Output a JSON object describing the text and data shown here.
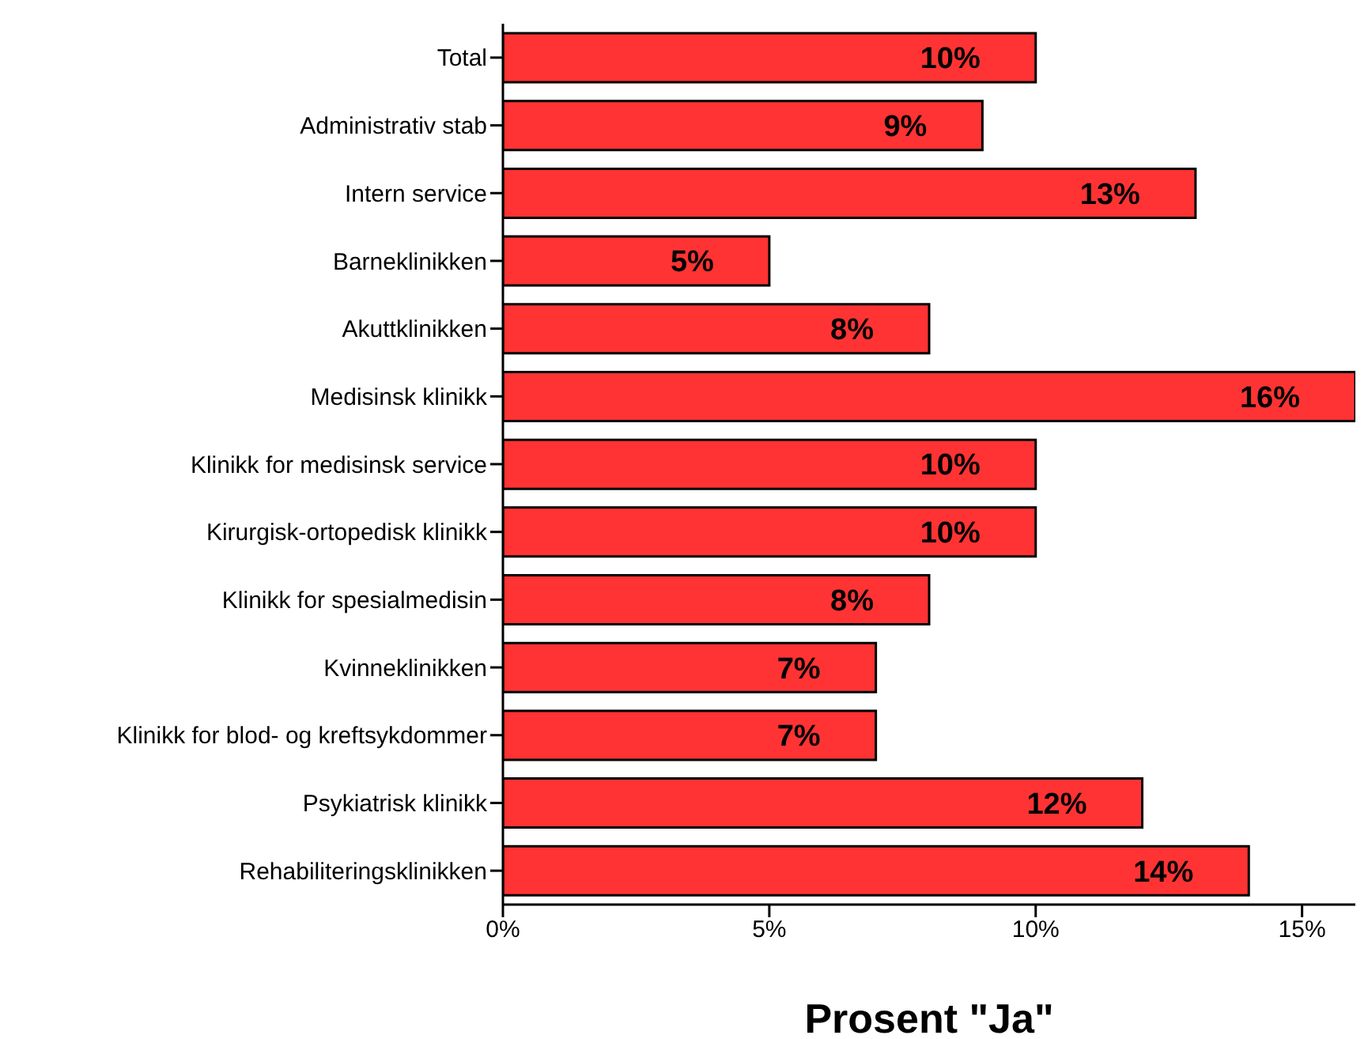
{
  "chart_data": {
    "type": "bar",
    "orientation": "horizontal",
    "xlabel": "Prosent \"Ja\"",
    "categories": [
      "Total",
      "Administrativ stab",
      "Intern service",
      "Barneklinikken",
      "Akuttklinikken",
      "Medisinsk klinikk",
      "Klinikk for medisinsk service",
      "Kirurgisk-ortopedisk klinikk",
      "Klinikk for spesialmedisin",
      "Kvinneklinikken",
      "Klinikk for blod- og kreftsykdommer",
      "Psykiatrisk klinikk",
      "Rehabiliteringsklinikken"
    ],
    "values": [
      10,
      9,
      13,
      5,
      8,
      16,
      10,
      10,
      8,
      7,
      7,
      12,
      14
    ],
    "value_labels": [
      "10%",
      "9%",
      "13%",
      "5%",
      "8%",
      "16%",
      "10%",
      "10%",
      "8%",
      "7%",
      "7%",
      "12%",
      "14%"
    ],
    "color": "#ff3333",
    "xlim": [
      0,
      16
    ],
    "xticks": [
      {
        "value": 0,
        "label": "0%"
      },
      {
        "value": 5,
        "label": "5%"
      },
      {
        "value": 10,
        "label": "10%"
      },
      {
        "value": 15,
        "label": "15%"
      }
    ],
    "grid": false,
    "legend": false
  }
}
